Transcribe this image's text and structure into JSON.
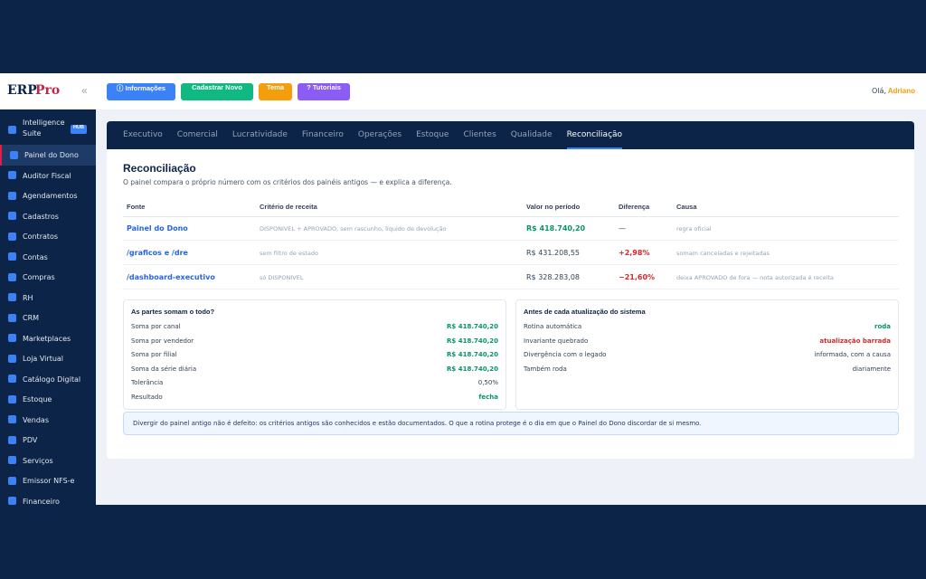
{
  "sidebar": {
    "logo": {
      "erp": "ERP",
      "pro": "Pro"
    },
    "collapse": "«",
    "badge": "HUB",
    "active": 1,
    "items": [
      "Intelligence Suite",
      "Painel do Dono",
      "Auditor Fiscal",
      "Agendamentos",
      "Cadastros",
      "Contratos",
      "Contas",
      "Compras",
      "RH",
      "CRM",
      "Marketplaces",
      "Loja Virtual",
      "Catálogo Digital",
      "Estoque",
      "Vendas",
      "PDV",
      "Serviços",
      "Emissor NFS-e",
      "Financeiro"
    ]
  },
  "topbar": {
    "buttons": [
      {
        "text": "ⓘ Informações",
        "color": "#3b82f6"
      },
      {
        "text": "Cadastrar Novo",
        "color": "#10b981"
      },
      {
        "text": "Tema",
        "color": "#f59e0b"
      },
      {
        "text": "? Tutoriais",
        "color": "#8b5cf6"
      }
    ],
    "greeting": "Olá,",
    "user": "Adriano"
  },
  "tabs": {
    "active": 8,
    "items": [
      "Executivo",
      "Comercial",
      "Lucratividade",
      "Financeiro",
      "Operações",
      "Estoque",
      "Clientes",
      "Qualidade",
      "Reconciliação"
    ]
  },
  "section": {
    "title": "Reconciliação",
    "subtitle": "O painel compara o próprio número com os critérios dos painéis antigos — e explica a diferença."
  },
  "table": {
    "headers": [
      "Fonte",
      "Critério de receita",
      "Valor no período",
      "Diferença",
      "Causa"
    ],
    "rows": [
      [
        {
          "text": "Painel do Dono",
          "color": "#2563eb"
        },
        "DISPONIVEL + APROVADO, sem rascunho, líquido de devolução",
        {
          "text": "R$ 418.740,20",
          "color": "#059669"
        },
        "—",
        "regra oficial"
      ],
      [
        {
          "text": "/graficos e /dre",
          "color": "#2563eb"
        },
        "sem filtro de estado",
        "R$ 431.208,55",
        {
          "text": "+2,98%",
          "color": "#dc2626"
        },
        "somam canceladas e rejeitadas"
      ],
      [
        {
          "text": "/dashboard-executivo",
          "color": "#2563eb"
        },
        "só DISPONIVEL",
        "R$ 328.283,08",
        {
          "text": "−21,60%",
          "color": "#dc2626"
        },
        "deixa APROVADO de fora — nota autorizada é receita"
      ]
    ]
  },
  "panels": [
    {
      "title": "As partes somam o todo?",
      "rows": [
        [
          "Soma por canal",
          {
            "text": "R$ 418.740,20",
            "color": "#059669"
          }
        ],
        [
          "Soma por vendedor",
          {
            "text": "R$ 418.740,20",
            "color": "#059669"
          }
        ],
        [
          "Soma por filial",
          {
            "text": "R$ 418.740,20",
            "color": "#059669"
          }
        ],
        [
          "Soma da série diária",
          {
            "text": "R$ 418.740,20",
            "color": "#059669"
          }
        ],
        [
          "Tolerância",
          "0,50%"
        ],
        [
          "Resultado",
          {
            "text": "fecha",
            "color": "#059669"
          }
        ]
      ]
    },
    {
      "title": "Antes de cada atualização do sistema",
      "rows": [
        [
          "Rotina automática",
          {
            "text": "roda",
            "color": "#059669"
          }
        ],
        [
          "Invariante quebrado",
          {
            "text": "atualização barrada",
            "color": "#dc2626"
          }
        ],
        [
          "Divergência com o legado",
          "informada, com a causa"
        ],
        [
          "Também roda",
          "diariamente"
        ]
      ]
    }
  ],
  "note": "Divergir do painel antigo não é defeito: os critérios antigos são conhecidos e estão documentados. O que a rotina protege é o dia em que o Painel do Dono discordar de si mesmo."
}
